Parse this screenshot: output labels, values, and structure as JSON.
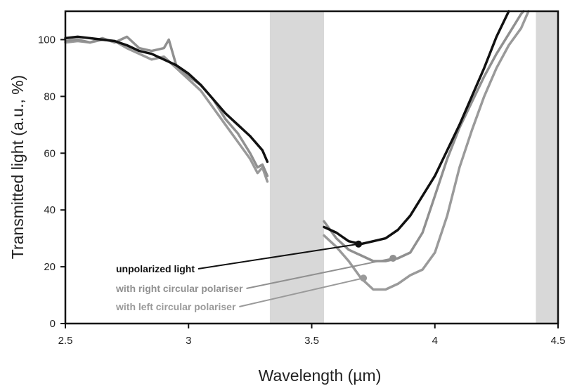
{
  "chart_data": {
    "type": "line",
    "title": "",
    "xlabel": "Wavelength  (µm)",
    "ylabel": "Transmitted light  (a.u., %)",
    "xlim": [
      2.5,
      4.5
    ],
    "ylim": [
      0,
      110
    ],
    "x_ticks": [
      "2.5",
      "3",
      "3.5",
      "4",
      "4.5"
    ],
    "y_ticks": [
      "0",
      "20",
      "40",
      "60",
      "80",
      "100"
    ],
    "grid": false,
    "shaded_bands": [
      {
        "x_start": 3.33,
        "x_end": 3.55,
        "color": "#d8d8d8"
      },
      {
        "x_start": 4.41,
        "x_end": 4.5,
        "color": "#d8d8d8"
      }
    ],
    "series": [
      {
        "name": "unpolarized light",
        "color": "#111111",
        "segments": [
          [
            [
              2.5,
              100.5
            ],
            [
              2.55,
              101
            ],
            [
              2.6,
              100.5
            ],
            [
              2.65,
              100
            ],
            [
              2.7,
              99.5
            ],
            [
              2.75,
              98
            ],
            [
              2.8,
              96
            ],
            [
              2.85,
              95
            ],
            [
              2.9,
              93
            ],
            [
              2.95,
              91
            ],
            [
              3.0,
              88
            ],
            [
              3.05,
              84
            ],
            [
              3.1,
              79
            ],
            [
              3.15,
              74
            ],
            [
              3.2,
              70
            ],
            [
              3.25,
              66
            ],
            [
              3.3,
              61
            ],
            [
              3.32,
              57
            ]
          ],
          [
            [
              3.55,
              34
            ],
            [
              3.6,
              32
            ],
            [
              3.65,
              29
            ],
            [
              3.7,
              28
            ],
            [
              3.75,
              29
            ],
            [
              3.8,
              30
            ],
            [
              3.85,
              33
            ],
            [
              3.9,
              38
            ],
            [
              3.95,
              45
            ],
            [
              4.0,
              52
            ],
            [
              4.05,
              61
            ],
            [
              4.1,
              70
            ],
            [
              4.15,
              80
            ],
            [
              4.2,
              90
            ],
            [
              4.25,
              101
            ],
            [
              4.3,
              110
            ]
          ]
        ],
        "marker": [
          3.69,
          28
        ]
      },
      {
        "name": "with right circular polariser",
        "color": "#909090",
        "segments": [
          [
            [
              2.5,
              99.5
            ],
            [
              2.55,
              100
            ],
            [
              2.6,
              99
            ],
            [
              2.65,
              100.5
            ],
            [
              2.7,
              99
            ],
            [
              2.75,
              101
            ],
            [
              2.8,
              97
            ],
            [
              2.85,
              96
            ],
            [
              2.9,
              97
            ],
            [
              2.92,
              100
            ],
            [
              2.95,
              91
            ],
            [
              3.0,
              87
            ],
            [
              3.05,
              84
            ],
            [
              3.1,
              79
            ],
            [
              3.15,
              72
            ],
            [
              3.2,
              67
            ],
            [
              3.25,
              60
            ],
            [
              3.28,
              55
            ],
            [
              3.3,
              56
            ],
            [
              3.32,
              52
            ]
          ],
          [
            [
              3.55,
              36
            ],
            [
              3.6,
              30
            ],
            [
              3.65,
              26
            ],
            [
              3.7,
              24
            ],
            [
              3.75,
              22
            ],
            [
              3.8,
              22
            ],
            [
              3.85,
              23
            ],
            [
              3.9,
              25
            ],
            [
              3.95,
              32
            ],
            [
              4.0,
              45
            ],
            [
              4.05,
              58
            ],
            [
              4.1,
              69
            ],
            [
              4.15,
              78
            ],
            [
              4.2,
              87
            ],
            [
              4.25,
              95
            ],
            [
              4.3,
              102
            ],
            [
              4.35,
              109
            ],
            [
              4.36,
              110
            ]
          ]
        ],
        "marker": [
          3.83,
          23
        ]
      },
      {
        "name": "with left circular polariser",
        "color": "#9a9a9a",
        "segments": [
          [
            [
              2.5,
              99
            ],
            [
              2.55,
              99.5
            ],
            [
              2.6,
              99
            ],
            [
              2.65,
              100
            ],
            [
              2.7,
              99.5
            ],
            [
              2.75,
              97
            ],
            [
              2.8,
              95
            ],
            [
              2.85,
              93
            ],
            [
              2.9,
              94
            ],
            [
              2.95,
              90
            ],
            [
              3.0,
              86
            ],
            [
              3.05,
              82
            ],
            [
              3.1,
              76
            ],
            [
              3.15,
              70
            ],
            [
              3.2,
              64
            ],
            [
              3.25,
              58
            ],
            [
              3.28,
              53
            ],
            [
              3.3,
              55
            ],
            [
              3.32,
              50
            ]
          ],
          [
            [
              3.55,
              31
            ],
            [
              3.6,
              27
            ],
            [
              3.65,
              22
            ],
            [
              3.7,
              16
            ],
            [
              3.75,
              12
            ],
            [
              3.8,
              12
            ],
            [
              3.85,
              14
            ],
            [
              3.9,
              17
            ],
            [
              3.95,
              19
            ],
            [
              4.0,
              25
            ],
            [
              4.05,
              38
            ],
            [
              4.1,
              55
            ],
            [
              4.15,
              68
            ],
            [
              4.2,
              80
            ],
            [
              4.25,
              90
            ],
            [
              4.3,
              98
            ],
            [
              4.35,
              104
            ],
            [
              4.38,
              110
            ]
          ]
        ],
        "marker": [
          3.71,
          16
        ]
      }
    ],
    "annotations": [
      {
        "text": "unpolarized light",
        "color": "#111111",
        "series": 0
      },
      {
        "text": "with right circular polariser",
        "color": "#909090",
        "series": 1
      },
      {
        "text": "with left circular polariser",
        "color": "#9a9a9a",
        "series": 2
      }
    ]
  }
}
